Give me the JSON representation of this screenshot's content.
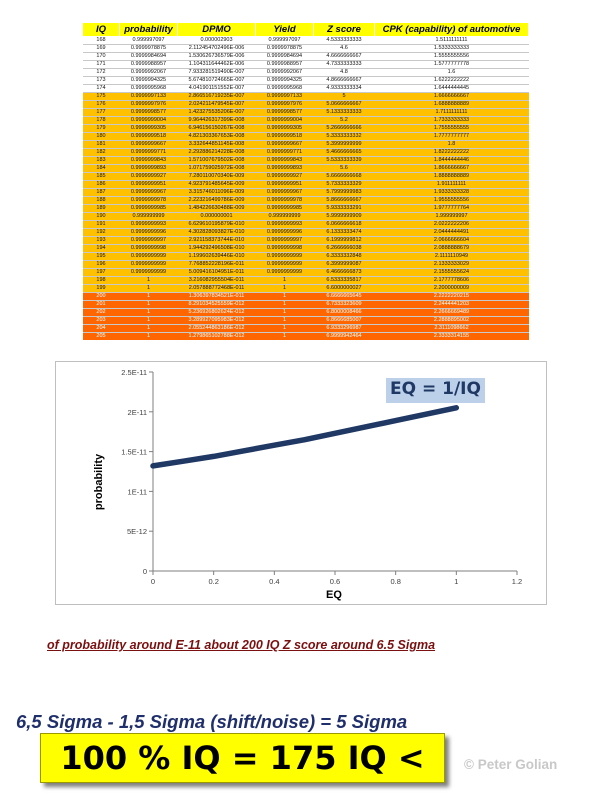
{
  "table": {
    "headers": [
      "IQ",
      "probability",
      "DPMO",
      "Yield",
      "Z score",
      "CPK (capability) of automotive"
    ],
    "rows": [
      [
        "168",
        "0.999997097",
        "0.000002903",
        "0.999997097",
        "4.5333333333",
        "1.5111111111"
      ],
      [
        "169",
        "0.9999978875",
        "2.112454702496E-006",
        "0.9999978875",
        "4.6",
        "1.5333333333"
      ],
      [
        "170",
        "0.9999984694",
        "1.530626736579E-006",
        "0.9999984694",
        "4.6666666667",
        "1.5555555556"
      ],
      [
        "171",
        "0.9999988957",
        "1.104311644462E-006",
        "0.9999988957",
        "4.7333333333",
        "1.5777777778"
      ],
      [
        "172",
        "0.9999992067",
        "7.933281519490E-007",
        "0.9999992067",
        "4.8",
        "1.6"
      ],
      [
        "173",
        "0.9999994325",
        "5.674810724665E-007",
        "0.9999994325",
        "4.8666666667",
        "1.6222222222"
      ],
      [
        "174",
        "0.9999995968",
        "4.041901151552E-007",
        "0.9999995968",
        "4.9333333334",
        "1.6444444445"
      ],
      [
        "175",
        "0.9999997133",
        "2.866516719235E-007",
        "0.9999997133",
        "5",
        "1.6666666667"
      ],
      [
        "176",
        "0.9999997976",
        "2.024211479545E-007",
        "0.9999997976",
        "5.0666666667",
        "1.6888888889"
      ],
      [
        "177",
        "0.9999998577",
        "1.423275535206E-007",
        "0.9999998577",
        "5.1333333333",
        "1.7111111111"
      ],
      [
        "178",
        "0.9999999004",
        "9.964426317399E-008",
        "0.9999999004",
        "5.2",
        "1.7333333333"
      ],
      [
        "179",
        "0.9999999305",
        "6.946156150267E-008",
        "0.9999999305",
        "5.2666666666",
        "1.7555555555"
      ],
      [
        "180",
        "0.9999999518",
        "4.821303367653E-008",
        "0.9999999518",
        "5.3333333332",
        "1.7777777777"
      ],
      [
        "181",
        "0.9999999667",
        "3.332644851145E-008",
        "0.9999999667",
        "5.3999999999",
        "1.8"
      ],
      [
        "182",
        "0.9999999771",
        "2.292886214228E-008",
        "0.9999999771",
        "5.4666666665",
        "1.8222222222"
      ],
      [
        "183",
        "0.9999999843",
        "1.571007679502E-008",
        "0.9999999843",
        "5.5333333339",
        "1.8444444446"
      ],
      [
        "184",
        "0.9999999893",
        "1.071759025972E-008",
        "0.9999999893",
        "5.6",
        "1.8666666667"
      ],
      [
        "185",
        "0.9999999927",
        "7.280110070340E-009",
        "0.9999999927",
        "5.6666666668",
        "1.8888888889"
      ],
      [
        "186",
        "0.9999999951",
        "4.923791485645E-009",
        "0.9999999951",
        "5.7333333329",
        "1.911111111"
      ],
      [
        "187",
        "0.9999999967",
        "3.315746011096E-009",
        "0.9999999967",
        "5.7999999983",
        "1.9333333328"
      ],
      [
        "188",
        "0.9999999978",
        "2.223216499786E-009",
        "0.9999999978",
        "5.8666666667",
        "1.9555555556"
      ],
      [
        "189",
        "0.9999999985",
        "1.484226630488E-009",
        "0.9999999985",
        "5.9333333291",
        "1.9777777764"
      ],
      [
        "190",
        "0.999999999",
        "0.000000001",
        "0.999999999",
        "5.9999999909",
        "1.999999997"
      ],
      [
        "191",
        "0.9999999993",
        "6.629610195879E-010",
        "0.9999999993",
        "6.0666666618",
        "2.0222222206"
      ],
      [
        "192",
        "0.9999999996",
        "4.302828093827E-010",
        "0.9999999996",
        "6.1333333474",
        "2.0444444491"
      ],
      [
        "193",
        "0.9999999997",
        "2.921158373744E-010",
        "0.9999999997",
        "6.1999999812",
        "2.0666666604"
      ],
      [
        "194",
        "0.9999999998",
        "1.944292496508E-010",
        "0.9999999998",
        "6.2666666038",
        "2.0888888679"
      ],
      [
        "195",
        "0.9999999999",
        "1.199602639446E-010",
        "0.9999999999",
        "6.3333332848",
        "2.1111110949"
      ],
      [
        "196",
        "0.9999999999",
        "7.768852228196E-011",
        "0.9999999999",
        "6.3999999087",
        "2.1333333029"
      ],
      [
        "197",
        "0.9999999999",
        "5.009416104951E-011",
        "0.9999999999",
        "6.4666666873",
        "2.1555555624"
      ],
      [
        "198",
        "1",
        "3.216082955504E-011",
        "1",
        "6.5333335817",
        "2.1777778606"
      ],
      [
        "199",
        "1",
        "2.057888772468E-011",
        "1",
        "6.6000000027",
        "2.2000000009"
      ],
      [
        "200",
        "1",
        "1.306397834521E-011",
        "1",
        "6.6666665645",
        "2.2222220215"
      ],
      [
        "201",
        "1",
        "8.291034525559E-012",
        "1",
        "6.7333323609",
        "2.2444441203"
      ],
      [
        "202",
        "1",
        "5.236926802624E-012",
        "1",
        "6.8000008466",
        "2.2666669489"
      ],
      [
        "203",
        "1",
        "3.289927095983E-012",
        "1",
        "6.8666685007",
        "2.2888895002"
      ],
      [
        "204",
        "1",
        "2.055244863186E-012",
        "1",
        "6.9333296987",
        "2.3111098662"
      ],
      [
        "205",
        "1",
        "1.279865102788E-012",
        "1",
        "6.9999942464",
        "2.3333314155"
      ]
    ]
  },
  "chart_data": {
    "type": "line",
    "title": "",
    "xlabel": "EQ",
    "ylabel": "probability",
    "xlim": [
      0,
      1.2
    ],
    "ylim": [
      0,
      2.5e-11
    ],
    "x_ticks": [
      "0",
      "0.2",
      "0.4",
      "0.6",
      "0.8",
      "1",
      "1.2"
    ],
    "y_ticks": [
      "0",
      "5E-12",
      "1E-11",
      "1.5E-11",
      "2E-11",
      "2.5E-11"
    ],
    "grid": false,
    "annotation": "EQ = 1/IQ",
    "line_color": "#1f3864",
    "series": [
      {
        "x": [
          0,
          0.1,
          0.2,
          0.3,
          0.4,
          0.5,
          0.6,
          0.7,
          0.8,
          0.9,
          1.0
        ],
        "values": [
          1.32e-11,
          1.38e-11,
          1.44e-11,
          1.51e-11,
          1.58e-11,
          1.65e-11,
          1.73e-11,
          1.81e-11,
          1.89e-11,
          1.97e-11,
          2.05e-11
        ]
      }
    ]
  },
  "caption": "of probability around E-11 about 200 IQ Z score  around 6.5 Sigma",
  "sigma_line": "6,5 Sigma - 1,5 Sigma  (shift/noise) = 5 Sigma",
  "iq_banner": "100 % IQ = 175 IQ <",
  "copyright": "© Peter Golian",
  "colors": {
    "header": "#ffff00",
    "band_white": "#ffffff",
    "band_yellow": "#ffc000",
    "band_orange": "#ff6600",
    "line": "#1f3864",
    "caption": "#7a1010",
    "sigma_line": "#1f2f6b",
    "banner": "#ffff00"
  }
}
